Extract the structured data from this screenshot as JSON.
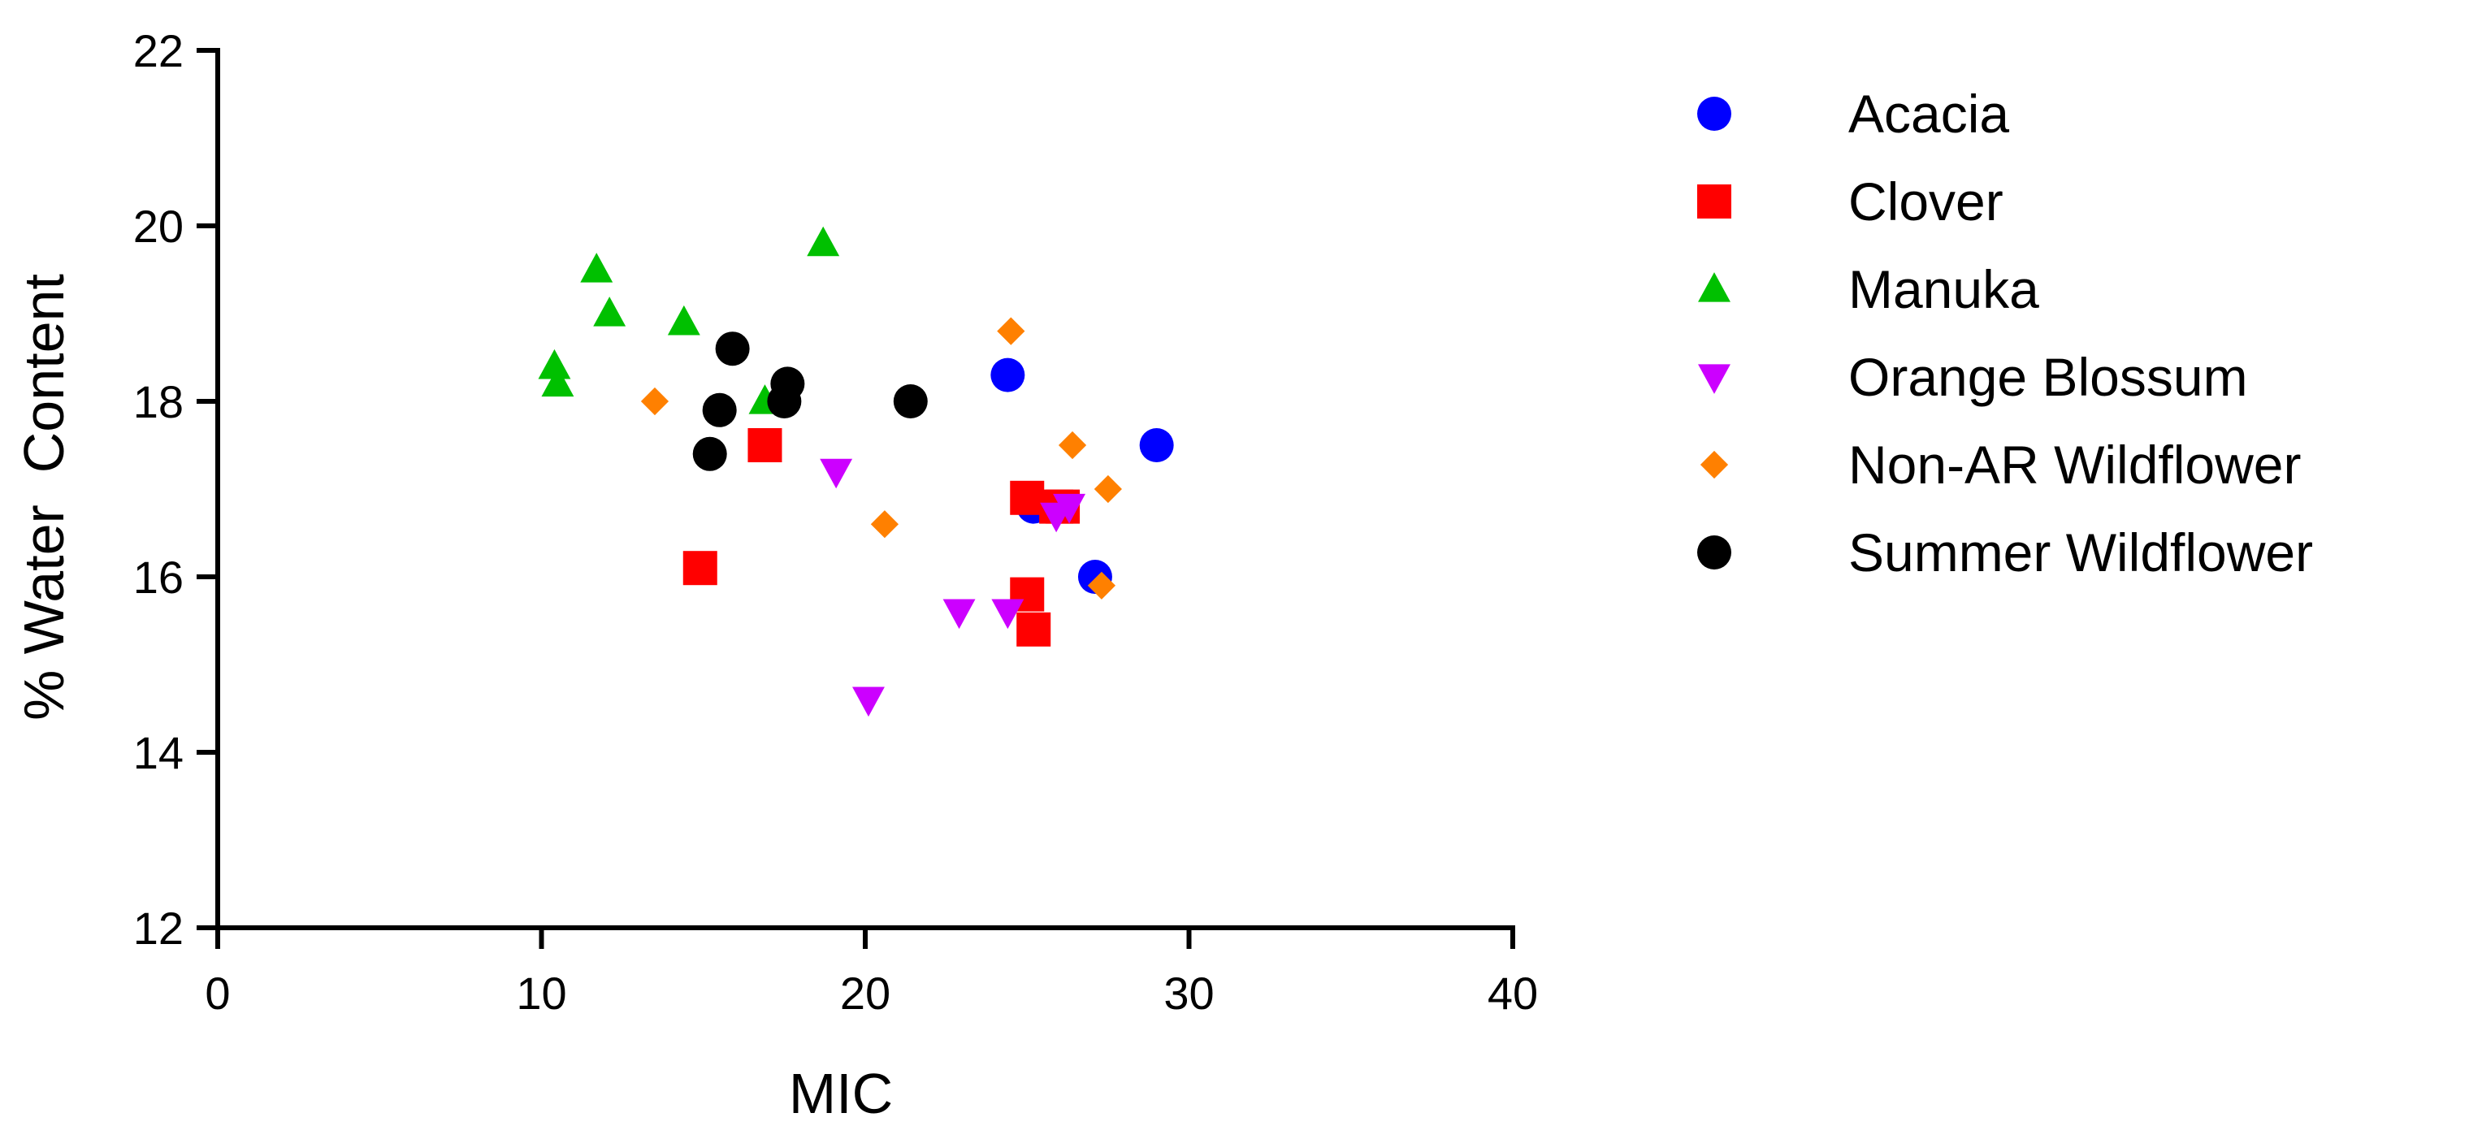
{
  "chart_data": {
    "type": "scatter",
    "title": "",
    "xlabel": "MIC",
    "ylabel": "% Water  Content",
    "xlim": [
      0,
      40
    ],
    "ylim": [
      12,
      22
    ],
    "xticks": [
      "0",
      "10",
      "20",
      "30",
      "40"
    ],
    "yticks": [
      "12",
      "14",
      "16",
      "18",
      "20",
      "22"
    ],
    "grid": false,
    "legend_position": "right",
    "series": [
      {
        "name": "Acacia",
        "marker": "circle",
        "color": "#0000ff",
        "points": [
          [
            24.4,
            18.3
          ],
          [
            29.0,
            17.5
          ],
          [
            25.2,
            16.8
          ],
          [
            27.1,
            16.0
          ]
        ]
      },
      {
        "name": "Clover",
        "marker": "square",
        "color": "#ff0000",
        "points": [
          [
            14.9,
            16.1
          ],
          [
            16.9,
            17.5
          ],
          [
            25.0,
            16.9
          ],
          [
            25.9,
            16.8
          ],
          [
            26.1,
            16.8
          ],
          [
            25.0,
            15.8
          ],
          [
            25.2,
            15.4
          ]
        ]
      },
      {
        "name": "Manuka",
        "marker": "triangle-up",
        "color": "#00c000",
        "points": [
          [
            10.4,
            18.4
          ],
          [
            10.5,
            18.2
          ],
          [
            11.7,
            19.5
          ],
          [
            12.1,
            19.0
          ],
          [
            14.4,
            18.9
          ],
          [
            16.9,
            18.0
          ],
          [
            18.7,
            19.8
          ]
        ]
      },
      {
        "name": "Orange Blossum",
        "marker": "triangle-down",
        "color": "#cc00ff",
        "points": [
          [
            19.1,
            17.2
          ],
          [
            20.1,
            14.6
          ],
          [
            22.9,
            15.6
          ],
          [
            24.4,
            15.6
          ],
          [
            25.9,
            16.7
          ],
          [
            26.3,
            16.8
          ]
        ]
      },
      {
        "name": "Non-AR Wildflower",
        "marker": "diamond",
        "color": "#ff8000",
        "points": [
          [
            13.5,
            18.0
          ],
          [
            20.6,
            16.6
          ],
          [
            24.5,
            18.8
          ],
          [
            26.4,
            17.5
          ],
          [
            27.5,
            17.0
          ],
          [
            27.3,
            15.9
          ]
        ]
      },
      {
        "name": "Summer Wildflower",
        "marker": "circle",
        "color": "#000000",
        "points": [
          [
            15.2,
            17.4
          ],
          [
            15.5,
            17.9
          ],
          [
            15.9,
            18.6
          ],
          [
            17.5,
            18.0
          ],
          [
            17.6,
            18.2
          ],
          [
            21.4,
            18.0
          ]
        ]
      }
    ]
  }
}
